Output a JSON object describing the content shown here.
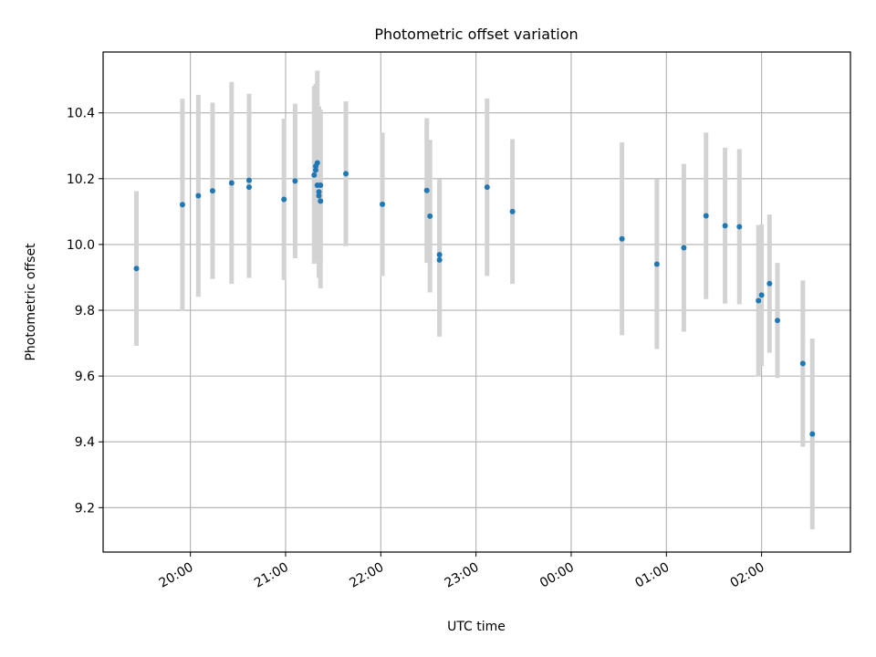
{
  "chart_data": {
    "type": "scatter",
    "title": "Photometric offset variation",
    "xlabel": "UTC time",
    "ylabel": "Photometric offset",
    "x_scale": "time",
    "xlim": [
      "19:05",
      "02:56"
    ],
    "ylim": [
      9.065,
      10.585
    ],
    "x_ticks": [
      "20:00",
      "21:00",
      "22:00",
      "23:00",
      "00:00",
      "01:00",
      "02:00"
    ],
    "y_ticks": [
      9.2,
      9.4,
      9.6,
      9.8,
      10.0,
      10.2,
      10.4
    ],
    "grid": true,
    "colors": {
      "point": "#1f77b4",
      "errorbar": "#d3d3d3",
      "grid": "#b0b0b0"
    },
    "points": [
      {
        "x": "19:26",
        "y": 9.927,
        "err": 0.235
      },
      {
        "x": "19:55",
        "y": 10.121,
        "err": 0.322
      },
      {
        "x": "20:05",
        "y": 10.148,
        "err": 0.307
      },
      {
        "x": "20:14",
        "y": 10.163,
        "err": 0.268
      },
      {
        "x": "20:26",
        "y": 10.187,
        "err": 0.307
      },
      {
        "x": "20:37",
        "y": 10.195,
        "err": 0.263
      },
      {
        "x": "20:37",
        "y": 10.174,
        "err": 0.276
      },
      {
        "x": "20:59",
        "y": 10.137,
        "err": 0.245
      },
      {
        "x": "21:06",
        "y": 10.193,
        "err": 0.235
      },
      {
        "x": "21:18",
        "y": 10.211,
        "err": 0.27
      },
      {
        "x": "21:19",
        "y": 10.226,
        "err": 0.26
      },
      {
        "x": "21:19",
        "y": 10.238,
        "err": 0.25
      },
      {
        "x": "21:20",
        "y": 10.248,
        "err": 0.28
      },
      {
        "x": "21:20",
        "y": 10.18,
        "err": 0.23
      },
      {
        "x": "21:21",
        "y": 10.16,
        "err": 0.26
      },
      {
        "x": "21:21",
        "y": 10.148,
        "err": 0.25
      },
      {
        "x": "21:22",
        "y": 10.132,
        "err": 0.265
      },
      {
        "x": "21:22",
        "y": 10.18,
        "err": 0.23
      },
      {
        "x": "21:38",
        "y": 10.215,
        "err": 0.22
      },
      {
        "x": "22:01",
        "y": 10.122,
        "err": 0.218
      },
      {
        "x": "22:29",
        "y": 10.164,
        "err": 0.22
      },
      {
        "x": "22:31",
        "y": 10.086,
        "err": 0.232
      },
      {
        "x": "22:37",
        "y": 9.969,
        "err": 0.23
      },
      {
        "x": "22:37",
        "y": 9.953,
        "err": 0.233
      },
      {
        "x": "23:07",
        "y": 10.174,
        "err": 0.27
      },
      {
        "x": "23:23",
        "y": 10.1,
        "err": 0.22
      },
      {
        "x": "00:32",
        "y": 10.017,
        "err": 0.293
      },
      {
        "x": "00:54",
        "y": 9.94,
        "err": 0.258
      },
      {
        "x": "01:11",
        "y": 9.99,
        "err": 0.255
      },
      {
        "x": "01:25",
        "y": 10.087,
        "err": 0.253
      },
      {
        "x": "01:37",
        "y": 10.057,
        "err": 0.237
      },
      {
        "x": "01:46",
        "y": 10.054,
        "err": 0.236
      },
      {
        "x": "01:58",
        "y": 9.829,
        "err": 0.23
      },
      {
        "x": "02:00",
        "y": 9.846,
        "err": 0.215
      },
      {
        "x": "02:05",
        "y": 9.881,
        "err": 0.21
      },
      {
        "x": "02:10",
        "y": 9.769,
        "err": 0.175
      },
      {
        "x": "02:26",
        "y": 9.638,
        "err": 0.253
      },
      {
        "x": "02:32",
        "y": 9.424,
        "err": 0.29
      }
    ]
  }
}
